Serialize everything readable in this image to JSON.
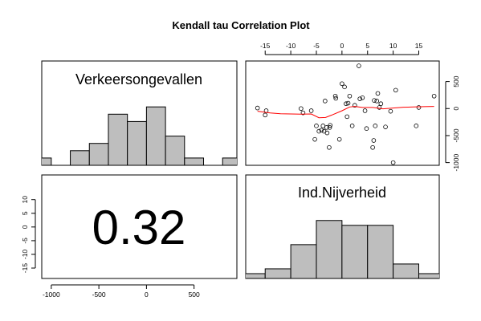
{
  "chart_data": {
    "type": "pairs",
    "title": "Kendall tau Correlation Plot",
    "correlation": "0.32",
    "top_axis_ticks": [
      "-15",
      "-10",
      "-5",
      "0",
      "5",
      "10",
      "15"
    ],
    "bottom_axis_ticks": [
      "-1000",
      "-500",
      "0",
      "500"
    ],
    "left_axis_ticks": [
      "-15",
      "-10",
      "-5",
      "0",
      "5",
      "10"
    ],
    "right_axis_ticks": [
      "-1000",
      "-500",
      "0",
      "500"
    ],
    "panels": [
      {
        "type": "histogram",
        "label": "Verkeersongevallen",
        "x_range": [
          -1100,
          950
        ],
        "breaks": [
          -1200,
          -1000,
          -800,
          -600,
          -400,
          -200,
          0,
          200,
          400,
          600,
          800,
          1000
        ],
        "heights": [
          1,
          0,
          2,
          3,
          7,
          6,
          8,
          4,
          1,
          0,
          1
        ]
      },
      {
        "type": "scatter",
        "xlabel": "Ind.Nijverheid",
        "ylabel": "Verkeersongevallen",
        "xlim": [
          -18.8,
          19
        ],
        "ylim": [
          -1050,
          880
        ],
        "points": [
          [
            -16.5,
            10
          ],
          [
            -15,
            -120
          ],
          [
            -14.8,
            -40
          ],
          [
            -8,
            0
          ],
          [
            -7.6,
            -80
          ],
          [
            -6,
            -40
          ],
          [
            -5.3,
            -570
          ],
          [
            -5,
            -320
          ],
          [
            -4.5,
            -420
          ],
          [
            -4,
            -400
          ],
          [
            -3.7,
            -320
          ],
          [
            -3.5,
            -420
          ],
          [
            -3.3,
            140
          ],
          [
            -3,
            -350
          ],
          [
            -2.9,
            -450
          ],
          [
            -2.5,
            -720
          ],
          [
            -2.4,
            -350
          ],
          [
            -2.3,
            -310
          ],
          [
            -1.3,
            230
          ],
          [
            -1.2,
            190
          ],
          [
            -0.5,
            -570
          ],
          [
            0,
            460
          ],
          [
            0.5,
            400
          ],
          [
            0.8,
            90
          ],
          [
            1,
            -150
          ],
          [
            1.2,
            100
          ],
          [
            1.5,
            230
          ],
          [
            2,
            -320
          ],
          [
            2.5,
            60
          ],
          [
            3.3,
            790
          ],
          [
            3.5,
            180
          ],
          [
            4,
            200
          ],
          [
            4.5,
            -40
          ],
          [
            4.8,
            -370
          ],
          [
            6,
            -720
          ],
          [
            6.2,
            -590
          ],
          [
            6.3,
            150
          ],
          [
            6.5,
            -320
          ],
          [
            6.8,
            140
          ],
          [
            7,
            280
          ],
          [
            7.3,
            20
          ],
          [
            7.6,
            90
          ],
          [
            8.5,
            -340
          ],
          [
            9.5,
            -50
          ],
          [
            10,
            -1000
          ],
          [
            10.5,
            340
          ],
          [
            14.5,
            -320
          ],
          [
            15,
            20
          ],
          [
            18,
            230
          ]
        ],
        "smooth": [
          [
            -16.5,
            -50
          ],
          [
            -14,
            -80
          ],
          [
            -12,
            -95
          ],
          [
            -10,
            -100
          ],
          [
            -8,
            -105
          ],
          [
            -6,
            -100
          ],
          [
            -4.5,
            -170
          ],
          [
            -3.2,
            -165
          ],
          [
            -2,
            -120
          ],
          [
            0,
            -40
          ],
          [
            1.5,
            30
          ],
          [
            2.5,
            40
          ],
          [
            4,
            20
          ],
          [
            6,
            20
          ],
          [
            8,
            -5
          ],
          [
            10,
            10
          ],
          [
            12,
            25
          ],
          [
            14,
            30
          ],
          [
            16,
            35
          ],
          [
            18,
            40
          ]
        ]
      },
      {
        "type": "text",
        "value": "0.32"
      },
      {
        "type": "histogram",
        "label": "Ind.Nijverheid",
        "x_range": [
          -18.8,
          19
        ],
        "breaks": [
          -20,
          -15,
          -10,
          -5,
          0,
          5,
          10,
          15,
          20
        ],
        "heights": [
          1,
          2,
          7,
          12,
          11,
          11,
          3,
          1
        ]
      }
    ]
  }
}
